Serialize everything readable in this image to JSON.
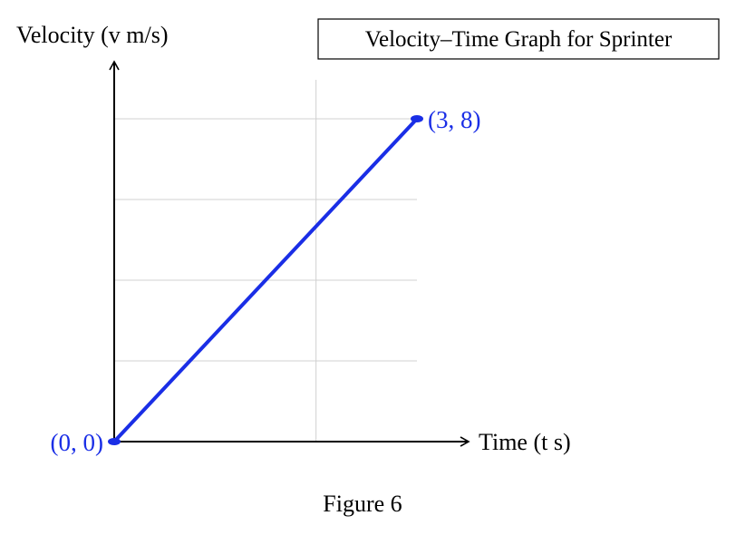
{
  "figure_caption": "Figure 6",
  "chart_data": {
    "type": "line",
    "title": "Velocity–Time Graph for Sprinter",
    "xlabel": "Time (t s)",
    "ylabel": "Velocity (v m/s)",
    "xlim": [
      0,
      3
    ],
    "ylim": [
      0,
      8
    ],
    "grid": true,
    "points": [
      {
        "x": 0,
        "y": 0,
        "label": "(0, 0)"
      },
      {
        "x": 3,
        "y": 8,
        "label": "(3, 8)"
      }
    ],
    "line_color": "#1a2ee6",
    "label_color": "#1a2ee6"
  }
}
